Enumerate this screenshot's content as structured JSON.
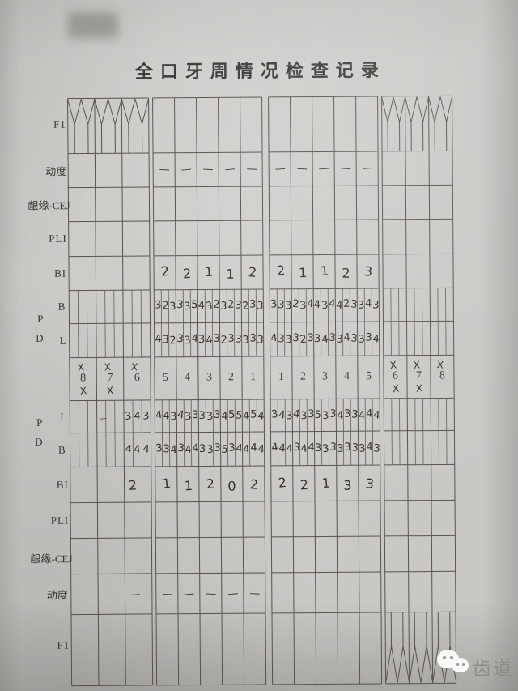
{
  "title": "全口牙周情况检查记录",
  "labels": {
    "f1_top": "F1",
    "mobility_top": "动度",
    "cej_top": "龈缘-CEJ",
    "pli_top": "PLI",
    "bi_top": "BI",
    "p_top": "P",
    "d_top": "D",
    "b_top": "B",
    "l_top": "L",
    "l_bottom": "L",
    "b_bottom": "B",
    "p_bottom": "P",
    "d_bottom": "D",
    "bi_bottom": "BI",
    "pli_bottom": "PLI",
    "cej_bottom": "龈缘-CEJ",
    "mobility_bottom": "动度",
    "f1_bottom": "F1"
  },
  "teeth": {
    "upper_left_molars": [
      "8",
      "7",
      "6"
    ],
    "upper_left": [
      "5",
      "4",
      "3",
      "2",
      "1"
    ],
    "upper_right": [
      "1",
      "2",
      "3",
      "4",
      "5"
    ],
    "upper_right_molars": [
      "6",
      "7",
      "8"
    ],
    "missing_char": "X",
    "missing_marks_left": [
      [
        "above",
        "below"
      ],
      [
        "above",
        "below"
      ],
      [
        "above"
      ]
    ],
    "missing_marks_right": [
      [
        "above",
        "below"
      ],
      [
        "above",
        "below"
      ],
      [
        "above"
      ]
    ]
  },
  "upper": {
    "mobility_left": [
      "—",
      "—",
      "—",
      "—",
      "—"
    ],
    "mobility_right": [
      "—",
      "—",
      "—",
      "—",
      "—"
    ],
    "bi_left": [
      "2",
      "2",
      "1",
      "1",
      "2"
    ],
    "bi_right": [
      "2",
      "1",
      "1",
      "2",
      "3"
    ],
    "pd_b_left": [
      "3",
      "2",
      "3",
      "3",
      "3",
      "5",
      "4",
      "3",
      "2",
      "3",
      "2",
      "3",
      "2",
      "3",
      "3"
    ],
    "pd_b_right": [
      "3",
      "3",
      "3",
      "2",
      "3",
      "4",
      "4",
      "3",
      "4",
      "4",
      "2",
      "3",
      "3",
      "4",
      "3"
    ],
    "pd_l_left": [
      "4",
      "3",
      "2",
      "3",
      "3",
      "4",
      "3",
      "4",
      "3",
      "2",
      "3",
      "3",
      "3",
      "3",
      "3"
    ],
    "pd_l_right": [
      "4",
      "3",
      "3",
      "3",
      "2",
      "3",
      "3",
      "4",
      "3",
      "3",
      "4",
      "3",
      "3",
      "3",
      "4"
    ]
  },
  "lower": {
    "pd_l_molar6": [
      "3",
      "4",
      "3"
    ],
    "pd_l_left": [
      "4",
      "4",
      "3",
      "4",
      "3",
      "3",
      "3",
      "3",
      "3",
      "4",
      "5",
      "5",
      "4",
      "5",
      "4"
    ],
    "pd_l_right": [
      "3",
      "4",
      "3",
      "4",
      "3",
      "3",
      "5",
      "3",
      "3",
      "4",
      "3",
      "3",
      "4",
      "4",
      "4"
    ],
    "pd_b_molar6": [
      "4",
      "4",
      "4"
    ],
    "pd_b_left": [
      "3",
      "3",
      "4",
      "3",
      "4",
      "4",
      "3",
      "3",
      "3",
      "5",
      "3",
      "4",
      "4",
      "4",
      "4"
    ],
    "pd_b_right": [
      "4",
      "4",
      "4",
      "3",
      "4",
      "4",
      "3",
      "3",
      "3",
      "3",
      "3",
      "3",
      "3",
      "4",
      "3"
    ],
    "bi_molar6": "2",
    "bi_left": [
      "1",
      "1",
      "2",
      "0",
      "2"
    ],
    "bi_right": [
      "2",
      "2",
      "1",
      "3",
      "3"
    ],
    "mobility_molar6": "—",
    "mobility_left": [
      "—",
      "—",
      "—",
      "—",
      "—"
    ],
    "stray_mark": "—"
  },
  "watermark": {
    "brand": "齿道"
  }
}
